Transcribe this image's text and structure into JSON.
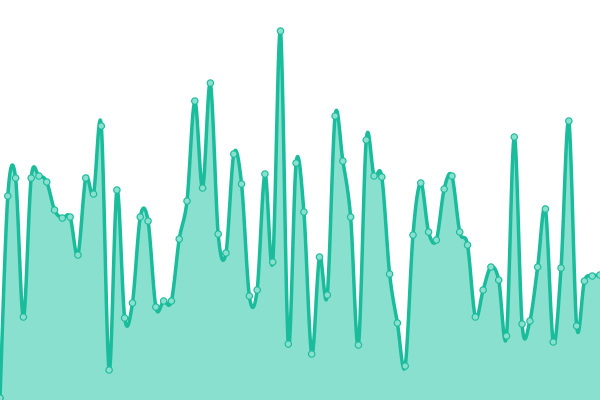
{
  "chart_data": {
    "type": "area",
    "title": "",
    "xlabel": "",
    "ylabel": "",
    "grid": false,
    "legend": "none",
    "ylim": [
      0,
      400
    ],
    "colors": {
      "line": "#1abc9c",
      "fill": "#8ae0cf",
      "point_fill": "#8ae0cf"
    },
    "values": [
      2,
      204,
      222,
      83,
      222,
      224,
      218,
      190,
      182,
      183,
      145,
      222,
      206,
      274,
      30,
      210,
      82,
      97,
      183,
      179,
      93,
      99,
      99,
      161,
      199,
      299,
      212,
      317,
      166,
      147,
      246,
      216,
      104,
      110,
      226,
      138,
      369,
      56,
      237,
      188,
      46,
      143,
      105,
      284,
      239,
      183,
      55,
      260,
      224,
      223,
      126,
      77,
      34,
      165,
      217,
      168,
      160,
      211,
      224,
      168,
      155,
      83,
      110,
      133,
      120,
      64,
      263,
      76,
      79,
      133,
      191,
      58,
      132,
      279,
      74,
      119,
      124,
      125
    ]
  }
}
